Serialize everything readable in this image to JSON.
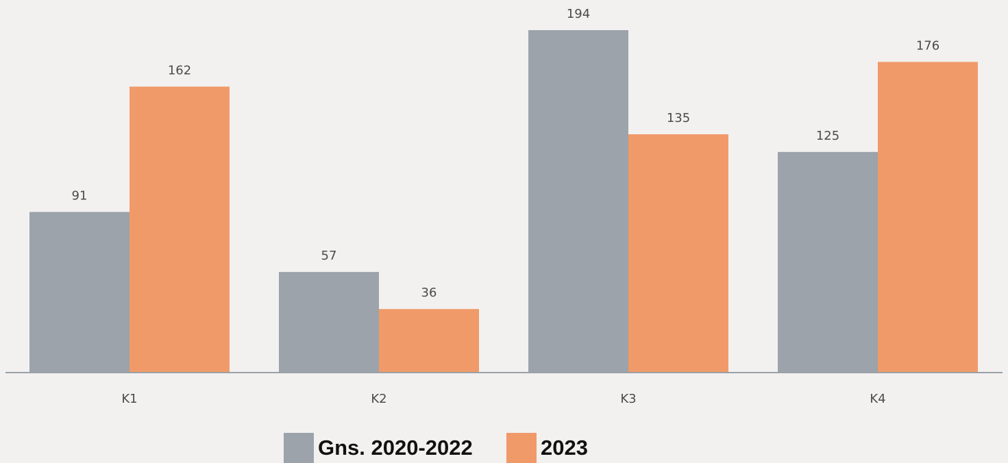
{
  "chart_data": {
    "type": "bar",
    "categories": [
      "K1",
      "K2",
      "K3",
      "K4"
    ],
    "series": [
      {
        "name": "Gns. 2020-2022",
        "values": [
          91,
          57,
          194,
          125
        ],
        "color": "#9ca3aa"
      },
      {
        "name": "2023",
        "values": [
          162,
          36,
          135,
          176
        ],
        "color": "#f09a69"
      }
    ],
    "ylim": [
      0,
      200
    ],
    "grid": false,
    "legend_position": "bottom-center"
  }
}
